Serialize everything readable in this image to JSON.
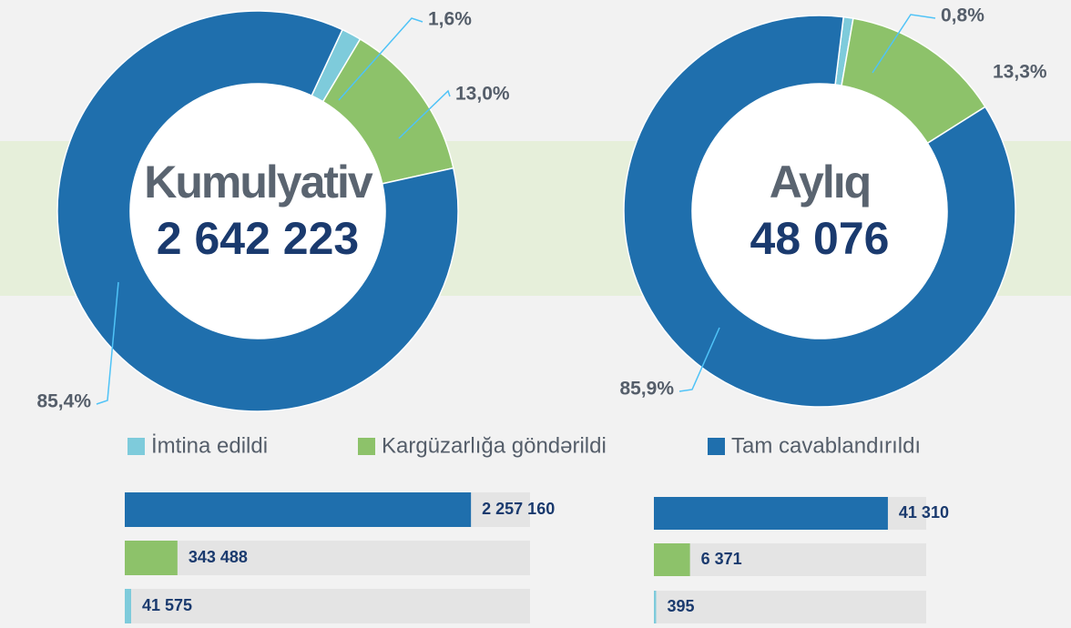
{
  "legend": [
    {
      "name": "İmtina edildi",
      "color": "#7ecbdb"
    },
    {
      "name": "Kargüzarlığa göndərildi",
      "color": "#8dc26a"
    },
    {
      "name": "Tam cavablandırıldı",
      "color": "#1f6fad"
    }
  ],
  "chart_data": [
    {
      "type": "pie",
      "title": "Kumulyativ",
      "subtitle": "2 642 223",
      "values": [
        1.6,
        13.0,
        85.4
      ],
      "value_labels": [
        "1,6%",
        "13,0%",
        "85,4%"
      ]
    },
    {
      "type": "pie",
      "title": "Aylıq",
      "subtitle": "48 076",
      "values": [
        0.8,
        13.3,
        85.9
      ],
      "value_labels": [
        "0,8%",
        "13,3%",
        "85,9%"
      ]
    },
    {
      "type": "bar",
      "orientation": "horizontal",
      "values": [
        2257160,
        343488,
        41575
      ],
      "value_labels": [
        "2 257 160",
        "343 488",
        "41 575"
      ],
      "xlim": [
        0,
        2642223
      ]
    },
    {
      "type": "bar",
      "orientation": "horizontal",
      "values": [
        41310,
        6371,
        395
      ],
      "value_labels": [
        "41 310",
        "6 371",
        "395"
      ],
      "xlim": [
        0,
        48076
      ]
    }
  ]
}
